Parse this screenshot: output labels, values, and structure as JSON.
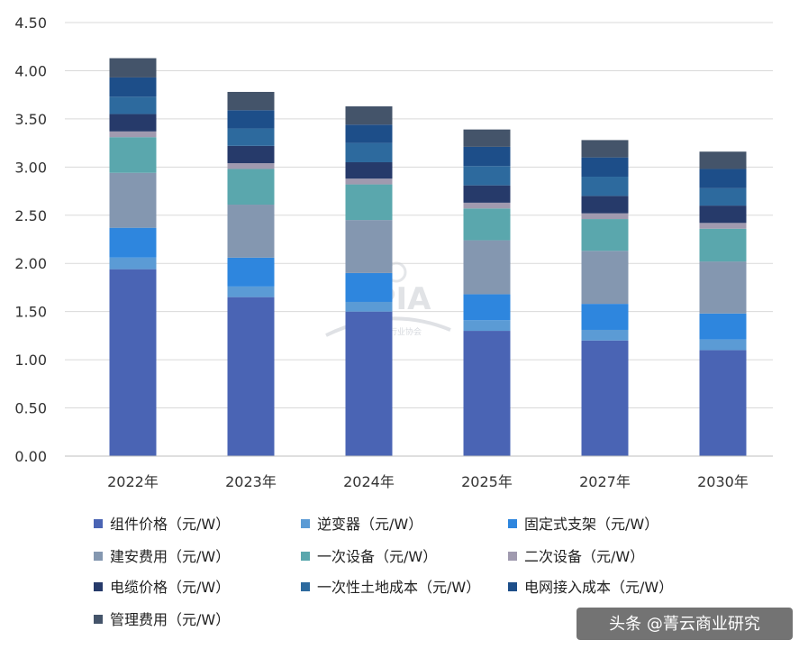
{
  "chart_data": {
    "type": "bar",
    "stacked": true,
    "title": "",
    "xlabel": "",
    "ylabel": "",
    "ylim": [
      0,
      4.5
    ],
    "yticks": [
      "0.00",
      "0.50",
      "1.00",
      "1.50",
      "2.00",
      "2.50",
      "3.00",
      "3.50",
      "4.00",
      "4.50"
    ],
    "grid": true,
    "legend_position": "bottom",
    "categories": [
      "2022年",
      "2023年",
      "2024年",
      "2025年",
      "2027年",
      "2030年"
    ],
    "series": [
      {
        "name": "组件价格（元/W）",
        "color": "#4a64b4",
        "values": [
          1.94,
          1.65,
          1.5,
          1.3,
          1.2,
          1.1
        ]
      },
      {
        "name": "逆变器（元/W）",
        "color": "#5b9bd5",
        "values": [
          0.12,
          0.11,
          0.1,
          0.11,
          0.11,
          0.11
        ]
      },
      {
        "name": "固定式支架（元/W）",
        "color": "#2e86de",
        "values": [
          0.31,
          0.3,
          0.3,
          0.27,
          0.27,
          0.27
        ]
      },
      {
        "name": "建安费用（元/W）",
        "color": "#8497b0",
        "values": [
          0.57,
          0.55,
          0.55,
          0.56,
          0.55,
          0.54
        ]
      },
      {
        "name": "一次设备（元/W）",
        "color": "#5aa7ad",
        "values": [
          0.37,
          0.37,
          0.37,
          0.33,
          0.33,
          0.34
        ]
      },
      {
        "name": "二次设备（元/W）",
        "color": "#a09aaf",
        "values": [
          0.06,
          0.06,
          0.06,
          0.06,
          0.06,
          0.06
        ]
      },
      {
        "name": "电缆价格（元/W）",
        "color": "#263a6a",
        "values": [
          0.18,
          0.18,
          0.17,
          0.18,
          0.18,
          0.18
        ]
      },
      {
        "name": "一次性土地成本（元/W）",
        "color": "#2d6a9e",
        "values": [
          0.18,
          0.18,
          0.2,
          0.2,
          0.2,
          0.18
        ]
      },
      {
        "name": "电网接入成本（元/W）",
        "color": "#1d4e89",
        "values": [
          0.2,
          0.19,
          0.19,
          0.2,
          0.2,
          0.2
        ]
      },
      {
        "name": "管理费用（元/W）",
        "color": "#44546a",
        "values": [
          0.2,
          0.19,
          0.19,
          0.18,
          0.18,
          0.18
        ]
      }
    ]
  },
  "watermark": {
    "logo_text": "CPIA",
    "sub_text": "中国光伏行业协会",
    "color": "#c9cdd3"
  },
  "credit": {
    "text": "头条 @菁云商业研究"
  }
}
